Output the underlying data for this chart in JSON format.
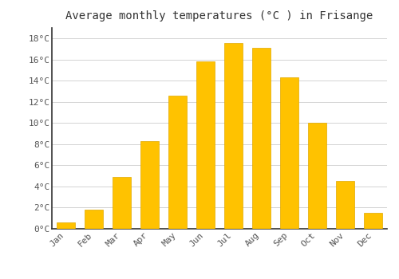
{
  "title": "Average monthly temperatures (°C ) in Frisange",
  "months": [
    "Jan",
    "Feb",
    "Mar",
    "Apr",
    "May",
    "Jun",
    "Jul",
    "Aug",
    "Sep",
    "Oct",
    "Nov",
    "Dec"
  ],
  "values": [
    0.6,
    1.8,
    4.9,
    8.3,
    12.6,
    15.8,
    17.6,
    17.1,
    14.3,
    10.0,
    4.5,
    1.5
  ],
  "bar_color": "#FFC200",
  "bar_edge_color": "#E0A800",
  "background_color": "#FFFFFF",
  "plot_bg_color": "#FFFFFF",
  "grid_color": "#CCCCCC",
  "ylim": [
    0,
    19
  ],
  "yticks": [
    0,
    2,
    4,
    6,
    8,
    10,
    12,
    14,
    16,
    18
  ],
  "ytick_labels": [
    "0°C",
    "2°C",
    "4°C",
    "6°C",
    "8°C",
    "10°C",
    "12°C",
    "14°C",
    "16°C",
    "18°C"
  ],
  "title_fontsize": 10,
  "tick_fontsize": 8,
  "font_family": "monospace",
  "spine_color": "#333333"
}
